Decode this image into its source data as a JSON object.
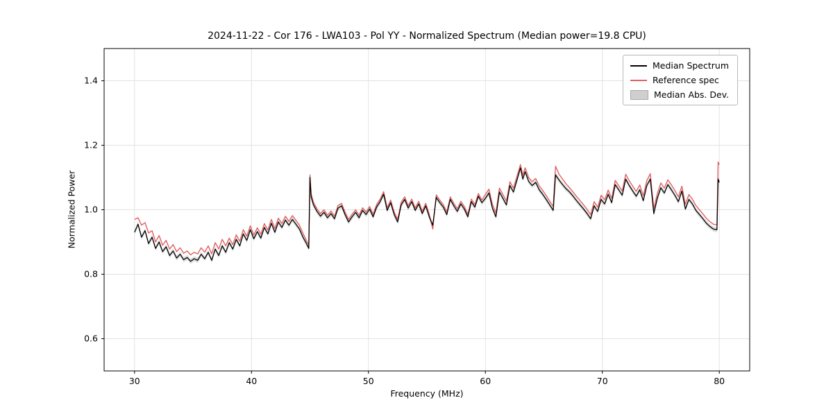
{
  "chart_data": {
    "type": "line",
    "title": "2024-11-22 - Cor 176 - LWA103 - Pol YY - Normalized Spectrum (Median power=19.8 CPU)",
    "xlabel": "Frequency (MHz)",
    "ylabel": "Normalized Power",
    "xlim": [
      27.4,
      82.6
    ],
    "ylim": [
      0.5,
      1.5
    ],
    "xticks": [
      30,
      40,
      50,
      60,
      70,
      80
    ],
    "yticks": [
      0.6,
      0.8,
      1.0,
      1.2,
      1.4
    ],
    "grid": true,
    "grid_color": "#e2e2e2",
    "mad_halfwidth": 0.008,
    "legend": {
      "position": "upper right",
      "entries": [
        {
          "label": "Median Spectrum",
          "type": "line",
          "color": "#000000"
        },
        {
          "label": "Reference spec",
          "type": "line",
          "color": "#e06060"
        },
        {
          "label": "Median Abs. Dev.",
          "type": "patch",
          "color": "#cfcfcf"
        }
      ]
    },
    "series_names": [
      "Median Spectrum",
      "Reference spec"
    ],
    "points_format": [
      "frequency_mhz",
      "median_spectrum",
      "reference_spec"
    ],
    "points": [
      [
        30.0,
        0.93,
        0.97
      ],
      [
        30.3,
        0.955,
        0.975
      ],
      [
        30.6,
        0.915,
        0.952
      ],
      [
        30.9,
        0.935,
        0.96
      ],
      [
        31.2,
        0.895,
        0.928
      ],
      [
        31.5,
        0.915,
        0.935
      ],
      [
        31.8,
        0.88,
        0.9
      ],
      [
        32.1,
        0.9,
        0.92
      ],
      [
        32.4,
        0.87,
        0.89
      ],
      [
        32.7,
        0.885,
        0.905
      ],
      [
        33.0,
        0.858,
        0.878
      ],
      [
        33.3,
        0.872,
        0.892
      ],
      [
        33.6,
        0.85,
        0.87
      ],
      [
        33.9,
        0.862,
        0.882
      ],
      [
        34.2,
        0.845,
        0.865
      ],
      [
        34.5,
        0.852,
        0.872
      ],
      [
        34.8,
        0.84,
        0.86
      ],
      [
        35.1,
        0.848,
        0.868
      ],
      [
        35.4,
        0.843,
        0.863
      ],
      [
        35.7,
        0.862,
        0.882
      ],
      [
        36.0,
        0.848,
        0.868
      ],
      [
        36.3,
        0.868,
        0.888
      ],
      [
        36.6,
        0.843,
        0.863
      ],
      [
        36.9,
        0.878,
        0.898
      ],
      [
        37.2,
        0.858,
        0.878
      ],
      [
        37.5,
        0.888,
        0.908
      ],
      [
        37.8,
        0.868,
        0.888
      ],
      [
        38.1,
        0.898,
        0.912
      ],
      [
        38.4,
        0.878,
        0.892
      ],
      [
        38.7,
        0.908,
        0.922
      ],
      [
        39.0,
        0.888,
        0.902
      ],
      [
        39.3,
        0.925,
        0.938
      ],
      [
        39.6,
        0.905,
        0.918
      ],
      [
        39.9,
        0.938,
        0.95
      ],
      [
        40.2,
        0.91,
        0.922
      ],
      [
        40.5,
        0.932,
        0.944
      ],
      [
        40.8,
        0.912,
        0.924
      ],
      [
        41.1,
        0.945,
        0.957
      ],
      [
        41.4,
        0.925,
        0.937
      ],
      [
        41.7,
        0.958,
        0.97
      ],
      [
        42.0,
        0.93,
        0.942
      ],
      [
        42.3,
        0.962,
        0.974
      ],
      [
        42.6,
        0.945,
        0.957
      ],
      [
        42.9,
        0.968,
        0.98
      ],
      [
        43.2,
        0.952,
        0.964
      ],
      [
        43.5,
        0.97,
        0.982
      ],
      [
        43.8,
        0.955,
        0.967
      ],
      [
        44.1,
        0.94,
        0.952
      ],
      [
        44.4,
        0.915,
        0.927
      ],
      [
        44.7,
        0.895,
        0.905
      ],
      [
        44.9,
        0.88,
        0.89
      ],
      [
        45.0,
        1.1,
        1.108
      ],
      [
        45.1,
        1.04,
        1.05
      ],
      [
        45.3,
        1.015,
        1.023
      ],
      [
        45.6,
        0.995,
        1.003
      ],
      [
        45.9,
        0.98,
        0.988
      ],
      [
        46.2,
        0.992,
        1.0
      ],
      [
        46.5,
        0.975,
        0.983
      ],
      [
        46.8,
        0.988,
        0.996
      ],
      [
        47.1,
        0.972,
        0.98
      ],
      [
        47.4,
        1.005,
        1.013
      ],
      [
        47.7,
        1.012,
        1.02
      ],
      [
        48.0,
        0.985,
        0.993
      ],
      [
        48.3,
        0.962,
        0.97
      ],
      [
        48.6,
        0.978,
        0.986
      ],
      [
        48.9,
        0.992,
        1.0
      ],
      [
        49.2,
        0.975,
        0.983
      ],
      [
        49.5,
        0.998,
        1.006
      ],
      [
        49.8,
        0.985,
        0.993
      ],
      [
        50.1,
        1.002,
        1.01
      ],
      [
        50.4,
        0.978,
        0.986
      ],
      [
        50.7,
        1.008,
        1.016
      ],
      [
        51.0,
        1.025,
        1.033
      ],
      [
        51.3,
        1.048,
        1.056
      ],
      [
        51.6,
        0.998,
        1.006
      ],
      [
        51.9,
        1.022,
        1.03
      ],
      [
        52.2,
        0.985,
        0.993
      ],
      [
        52.5,
        0.962,
        0.97
      ],
      [
        52.8,
        1.015,
        1.023
      ],
      [
        53.1,
        1.032,
        1.04
      ],
      [
        53.4,
        1.005,
        1.013
      ],
      [
        53.7,
        1.025,
        1.033
      ],
      [
        54.0,
        0.998,
        1.006
      ],
      [
        54.3,
        1.018,
        1.026
      ],
      [
        54.6,
        0.988,
        0.996
      ],
      [
        54.9,
        1.012,
        1.02
      ],
      [
        55.2,
        0.978,
        0.986
      ],
      [
        55.5,
        0.952,
        0.94
      ],
      [
        55.8,
        1.038,
        1.046
      ],
      [
        56.1,
        1.022,
        1.03
      ],
      [
        56.4,
        1.008,
        1.016
      ],
      [
        56.7,
        0.985,
        0.993
      ],
      [
        57.0,
        1.032,
        1.04
      ],
      [
        57.3,
        1.012,
        1.02
      ],
      [
        57.6,
        0.995,
        1.003
      ],
      [
        57.9,
        1.018,
        1.026
      ],
      [
        58.2,
        1.002,
        1.01
      ],
      [
        58.5,
        0.978,
        0.986
      ],
      [
        58.8,
        1.025,
        1.033
      ],
      [
        59.1,
        1.008,
        1.016
      ],
      [
        59.4,
        1.042,
        1.05
      ],
      [
        59.7,
        1.022,
        1.03
      ],
      [
        60.0,
        1.035,
        1.047
      ],
      [
        60.3,
        1.052,
        1.064
      ],
      [
        60.6,
        1.005,
        1.017
      ],
      [
        60.9,
        0.978,
        0.99
      ],
      [
        61.2,
        1.055,
        1.067
      ],
      [
        61.5,
        1.035,
        1.047
      ],
      [
        61.8,
        1.015,
        1.027
      ],
      [
        62.1,
        1.075,
        1.087
      ],
      [
        62.4,
        1.055,
        1.067
      ],
      [
        62.7,
        1.092,
        1.104
      ],
      [
        63.0,
        1.13,
        1.14
      ],
      [
        63.2,
        1.095,
        1.107
      ],
      [
        63.4,
        1.118,
        1.13
      ],
      [
        63.7,
        1.088,
        1.1
      ],
      [
        64.0,
        1.075,
        1.087
      ],
      [
        64.3,
        1.085,
        1.097
      ],
      [
        64.6,
        1.062,
        1.074
      ],
      [
        64.9,
        1.048,
        1.06
      ],
      [
        65.2,
        1.032,
        1.044
      ],
      [
        65.5,
        1.015,
        1.027
      ],
      [
        65.8,
        0.998,
        1.01
      ],
      [
        66.0,
        1.108,
        1.135
      ],
      [
        66.3,
        1.092,
        1.11
      ],
      [
        66.6,
        1.078,
        1.095
      ],
      [
        66.9,
        1.065,
        1.08
      ],
      [
        67.2,
        1.055,
        1.068
      ],
      [
        67.5,
        1.042,
        1.055
      ],
      [
        67.8,
        1.028,
        1.041
      ],
      [
        68.1,
        1.015,
        1.028
      ],
      [
        68.4,
        1.002,
        1.015
      ],
      [
        68.7,
        0.988,
        1.001
      ],
      [
        69.0,
        0.972,
        0.985
      ],
      [
        69.3,
        1.012,
        1.025
      ],
      [
        69.6,
        0.995,
        1.008
      ],
      [
        69.9,
        1.032,
        1.045
      ],
      [
        70.2,
        1.018,
        1.031
      ],
      [
        70.5,
        1.048,
        1.061
      ],
      [
        70.8,
        1.022,
        1.035
      ],
      [
        71.1,
        1.078,
        1.091
      ],
      [
        71.4,
        1.062,
        1.075
      ],
      [
        71.7,
        1.045,
        1.058
      ],
      [
        72.0,
        1.095,
        1.11
      ],
      [
        72.3,
        1.075,
        1.09
      ],
      [
        72.6,
        1.058,
        1.073
      ],
      [
        72.9,
        1.042,
        1.057
      ],
      [
        73.2,
        1.062,
        1.077
      ],
      [
        73.5,
        1.028,
        1.043
      ],
      [
        73.8,
        1.075,
        1.09
      ],
      [
        74.1,
        1.095,
        1.112
      ],
      [
        74.4,
        0.988,
        1.003
      ],
      [
        74.7,
        1.035,
        1.05
      ],
      [
        75.0,
        1.068,
        1.083
      ],
      [
        75.3,
        1.052,
        1.067
      ],
      [
        75.6,
        1.078,
        1.093
      ],
      [
        75.9,
        1.062,
        1.077
      ],
      [
        76.2,
        1.045,
        1.06
      ],
      [
        76.5,
        1.025,
        1.04
      ],
      [
        76.8,
        1.058,
        1.073
      ],
      [
        77.1,
        1.002,
        1.017
      ],
      [
        77.4,
        1.032,
        1.047
      ],
      [
        77.7,
        1.018,
        1.033
      ],
      [
        78.0,
        0.998,
        1.013
      ],
      [
        78.3,
        0.985,
        1.0
      ],
      [
        78.6,
        0.972,
        0.987
      ],
      [
        78.9,
        0.958,
        0.973
      ],
      [
        79.2,
        0.948,
        0.963
      ],
      [
        79.5,
        0.94,
        0.955
      ],
      [
        79.8,
        0.938,
        0.953
      ],
      [
        79.9,
        1.095,
        1.148
      ],
      [
        80.0,
        1.085,
        1.14
      ]
    ]
  }
}
